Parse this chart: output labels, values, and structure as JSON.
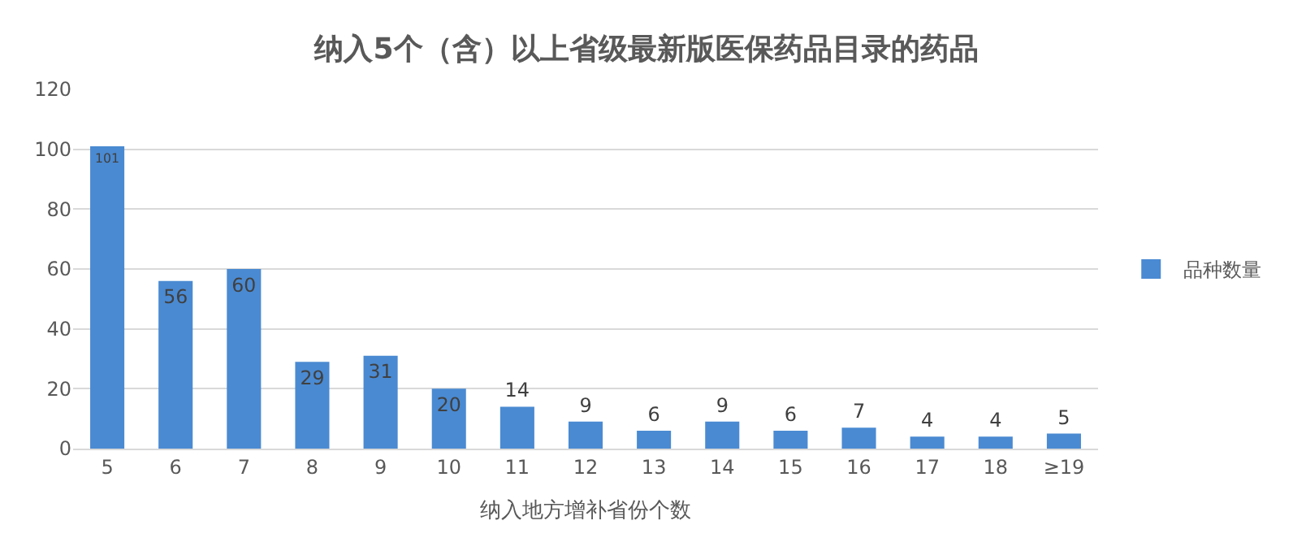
{
  "chart_data": {
    "type": "bar",
    "title": "纳入5个（含）以上省级最新版医保药品目录的药品",
    "xlabel": "纳入地方增补省份个数",
    "categories": [
      "5",
      "6",
      "7",
      "8",
      "9",
      "10",
      "11",
      "12",
      "13",
      "14",
      "15",
      "16",
      "17",
      "18",
      "≥19"
    ],
    "series": [
      {
        "name": "品种数量",
        "color": "#4a8ad2",
        "values": [
          101,
          56,
          60,
          29,
          31,
          20,
          14,
          9,
          6,
          9,
          6,
          7,
          4,
          4,
          5
        ]
      }
    ],
    "ylim": [
      0,
      120
    ],
    "yticks": [
      0,
      20,
      40,
      60,
      80,
      100,
      120
    ],
    "grid": "y",
    "legend": "right",
    "data_labels": true
  }
}
